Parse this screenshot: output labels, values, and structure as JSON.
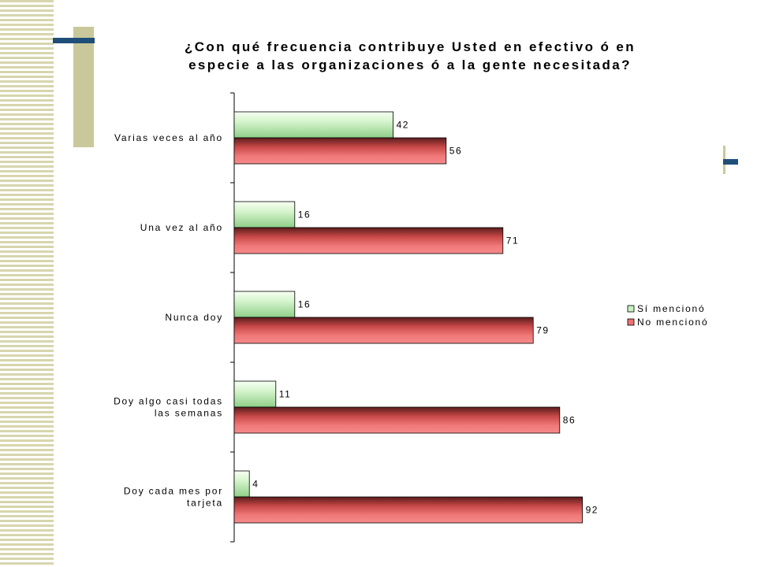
{
  "chart_data": {
    "type": "bar",
    "orientation": "horizontal",
    "title": "¿Con qué frecuencia contribuye Usted en efectivo ó en especie a las organizaciones ó a la gente necesitada?",
    "categories": [
      "Varias veces al año",
      "Una vez al año",
      "Nunca doy",
      "Doy algo casi todas las semanas",
      "Doy cada mes por tarjeta"
    ],
    "category_lines": [
      [
        "Varias veces al año"
      ],
      [
        "Una vez al año"
      ],
      [
        "Nunca doy"
      ],
      [
        "Doy algo casi todas",
        "las semanas"
      ],
      [
        "Doy cada mes por",
        "tarjeta"
      ]
    ],
    "series": [
      {
        "name": "Sí mencionó",
        "values": [
          42,
          16,
          16,
          11,
          4
        ],
        "color": "#c8f0c0"
      },
      {
        "name": "No mencionó",
        "values": [
          56,
          71,
          79,
          86,
          92
        ],
        "color": "#f07070"
      }
    ],
    "xlim": [
      0,
      100
    ],
    "grid": false,
    "legend_position": "right"
  }
}
